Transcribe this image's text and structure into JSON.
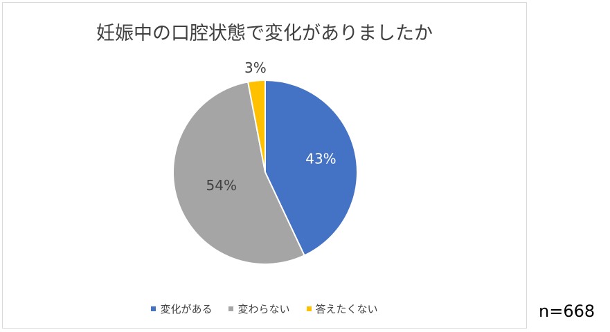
{
  "chart_data": {
    "type": "pie",
    "title": "妊娠中の口腔状態で変化がありましたか",
    "categories": [
      "変化がある",
      "変わらない",
      "答えたくない"
    ],
    "values": [
      43,
      54,
      3
    ],
    "labels": [
      "43%",
      "54%",
      "3%"
    ],
    "colors": [
      "#4472C4",
      "#A5A5A5",
      "#FFC000"
    ],
    "label_colors": [
      "#ffffff",
      "#404040",
      "#404040"
    ],
    "legend_position": "bottom"
  },
  "note": "n=668"
}
